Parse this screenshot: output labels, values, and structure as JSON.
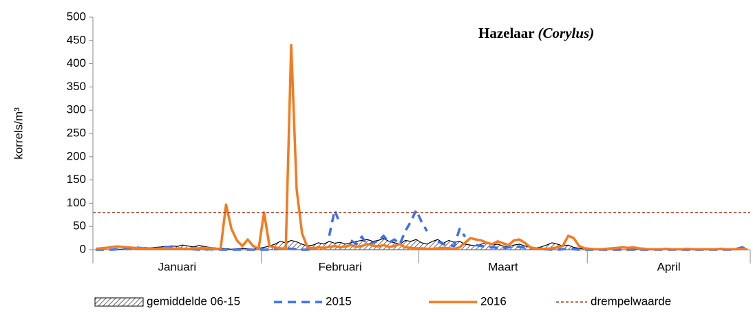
{
  "chart_data": {
    "type": "line",
    "title": "Hazelaar",
    "title_latin": "(Corylus)",
    "y_label": "korrels/m³",
    "months": [
      "Januari",
      "Februari",
      "Maart",
      "April"
    ],
    "days_per_month": [
      31,
      29,
      31,
      30
    ],
    "ylim": [
      0,
      500
    ],
    "yticks": [
      0,
      50,
      100,
      150,
      200,
      250,
      300,
      350,
      400,
      450,
      500
    ],
    "threshold": {
      "name": "drempelwaarde",
      "value": 80,
      "color": "#a0391a"
    },
    "series": [
      {
        "name": "gemiddelde 06-15",
        "color": "#000000",
        "style": "hatched-area",
        "values": [
          0,
          0,
          0,
          0,
          1,
          1,
          2,
          3,
          4,
          5,
          4,
          5,
          6,
          7,
          8,
          7,
          10,
          8,
          6,
          9,
          7,
          5,
          4,
          3,
          2,
          1,
          2,
          3,
          2,
          1,
          3,
          5,
          8,
          12,
          18,
          15,
          20,
          17,
          12,
          8,
          10,
          15,
          12,
          18,
          14,
          16,
          12,
          15,
          18,
          20,
          22,
          18,
          20,
          24,
          18,
          15,
          12,
          20,
          18,
          22,
          15,
          12,
          18,
          22,
          14,
          20,
          16,
          18,
          12,
          10,
          8,
          12,
          15,
          10,
          12,
          8,
          6,
          10,
          12,
          8,
          5,
          4,
          6,
          10,
          15,
          12,
          8,
          10,
          5,
          3,
          2,
          2,
          1,
          1,
          0,
          1,
          1,
          0,
          0,
          1,
          0,
          0,
          0,
          0,
          0,
          0,
          0,
          0,
          0,
          0,
          0,
          0,
          0,
          0,
          0,
          0,
          0,
          0,
          0,
          0,
          0
        ]
      },
      {
        "name": "2015",
        "color": "#3b6ff0",
        "style": "dashed",
        "values": [
          0,
          0,
          0,
          0,
          1,
          2,
          3,
          5,
          4,
          3,
          2,
          2,
          4,
          6,
          5,
          3,
          2,
          1,
          1,
          0,
          0,
          1,
          0,
          0,
          0,
          0,
          0,
          0,
          0,
          0,
          0,
          0,
          0,
          1,
          2,
          3,
          2,
          1,
          0,
          0,
          2,
          5,
          null,
          30,
          85,
          55,
          null,
          20,
          12,
          28,
          10,
          15,
          18,
          30,
          15,
          22,
          12,
          40,
          60,
          85,
          60,
          40,
          null,
          18,
          12,
          10,
          8,
          45,
          28,
          null,
          10,
          8,
          6,
          5,
          4,
          3,
          5,
          8,
          6,
          4,
          3,
          2,
          1,
          1,
          0,
          0,
          1,
          2,
          1,
          0,
          0,
          0,
          0,
          0,
          0,
          0,
          0,
          0,
          0,
          0,
          0,
          0,
          0,
          0,
          0,
          0,
          0,
          0,
          0,
          0,
          0,
          0,
          0,
          0,
          0,
          0,
          0,
          0,
          2,
          5,
          1
        ]
      },
      {
        "name": "2016",
        "color": "#f47a1f",
        "style": "solid",
        "values": [
          2,
          3,
          4,
          6,
          7,
          6,
          5,
          4,
          3,
          3,
          2,
          2,
          2,
          3,
          3,
          2,
          2,
          2,
          3,
          3,
          4,
          3,
          2,
          1,
          97,
          45,
          20,
          8,
          22,
          8,
          2,
          80,
          8,
          5,
          3,
          2,
          440,
          130,
          35,
          5,
          3,
          5,
          4,
          6,
          8,
          5,
          7,
          10,
          6,
          8,
          12,
          9,
          7,
          10,
          6,
          8,
          12,
          5,
          4,
          3,
          3,
          2,
          2,
          3,
          4,
          3,
          2,
          5,
          15,
          25,
          22,
          20,
          15,
          12,
          18,
          14,
          10,
          20,
          22,
          15,
          5,
          3,
          2,
          2,
          3,
          5,
          8,
          30,
          25,
          8,
          3,
          2,
          1,
          1,
          2,
          3,
          4,
          5,
          4,
          5,
          3,
          2,
          1,
          1,
          1,
          2,
          1,
          1,
          1,
          2,
          1,
          1,
          1,
          1,
          1,
          2,
          1,
          1,
          1,
          2,
          1
        ]
      }
    ]
  }
}
